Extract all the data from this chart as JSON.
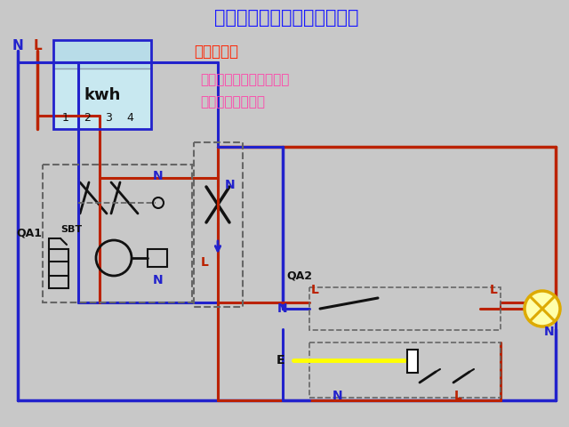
{
  "title": "照明电路一：一控一灯一插座",
  "ctrl_req_title": "控制要求：",
  "ctrl_req_text1": "一个开关控制一盏灯，插",
  "ctrl_req_text2": "座不受开关控制。",
  "bg_color": "#c8c8c8",
  "title_color": "#1a1aff",
  "ctrl_title_color": "#ff2200",
  "ctrl_text_color": "#ff44aa",
  "N_color": "#2222cc",
  "L_color": "#bb2200",
  "meter_bg_top": "#b8dce8",
  "meter_bg_bot": "#c8e8f0",
  "meter_border": "#2222cc",
  "dashed_color": "#666666",
  "black": "#111111",
  "lamp_fill": "#ffffaa",
  "lamp_edge": "#ddaa00",
  "yellow_wire": "#ffff00",
  "white": "#ffffff"
}
